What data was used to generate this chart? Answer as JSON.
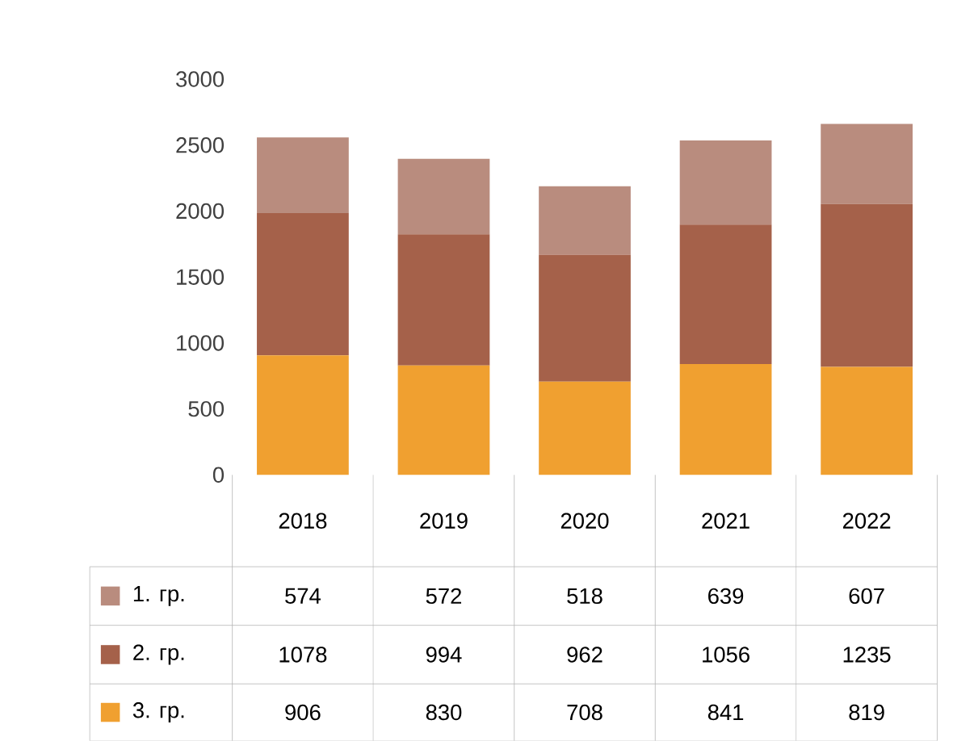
{
  "chart_data": {
    "type": "bar",
    "stacked": true,
    "data_labels": true,
    "legend": "bottom",
    "categories": [
      "2018",
      "2019",
      "2020",
      "2021",
      "2022"
    ],
    "series": [
      {
        "name": "3. гр.",
        "color": "#f0a030",
        "values": [
          906,
          830,
          708,
          841,
          819
        ]
      },
      {
        "name": "2. гр.",
        "color": "#a5614a",
        "values": [
          1078,
          994,
          962,
          1056,
          1235
        ]
      },
      {
        "name": "1. гр.",
        "color": "#b98c7e",
        "values": [
          574,
          572,
          518,
          639,
          607
        ]
      }
    ],
    "ylim": [
      0,
      3000
    ],
    "yticks": [
      0,
      500,
      1000,
      1500,
      2000,
      2500,
      3000
    ]
  }
}
